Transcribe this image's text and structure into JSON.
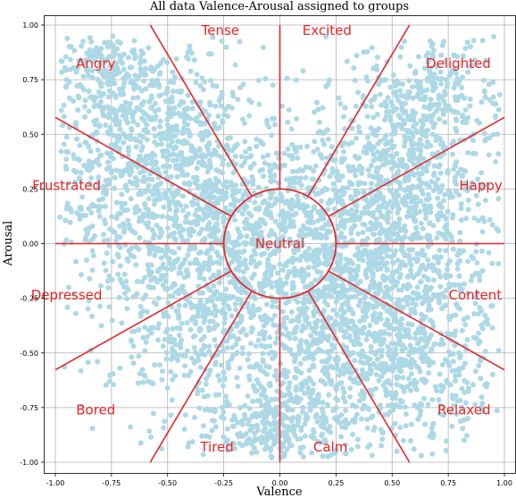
{
  "chart_data": {
    "type": "scatter",
    "title": "All data Valence-Arousal assigned to groups",
    "xlabel": "Valence",
    "ylabel": "Arousal",
    "xlim": [
      -1.0,
      1.0
    ],
    "ylim": [
      -1.0,
      1.0
    ],
    "xticks": [
      "-1.00",
      "-0.75",
      "-0.50",
      "-0.25",
      "0.00",
      "0.25",
      "0.50",
      "0.75",
      "1.00"
    ],
    "yticks": [
      "1.00",
      "0.75",
      "0.50",
      "0.25",
      "0.00",
      "-0.25",
      "-0.50",
      "-0.75",
      "-1.00"
    ],
    "xtick_values": [
      -1.0,
      -0.75,
      -0.5,
      -0.25,
      0.0,
      0.25,
      0.5,
      0.75,
      1.0
    ],
    "ytick_values": [
      1.0,
      0.75,
      0.5,
      0.25,
      0.0,
      -0.25,
      -0.5,
      -0.75,
      -1.0
    ],
    "grid": true,
    "point_color": "#add8e6",
    "line_color": "#e8262b",
    "label_color": "#ee2222",
    "neutral_radius": 0.25,
    "boundary_angles_deg": [
      0,
      30,
      60,
      90,
      120,
      150,
      180,
      210,
      240,
      270,
      300,
      330
    ],
    "regions": [
      {
        "label": "Excited",
        "x": 0.21,
        "y": 0.975
      },
      {
        "label": "Delighted",
        "x": 0.795,
        "y": 0.825
      },
      {
        "label": "Happy",
        "x": 0.895,
        "y": 0.265
      },
      {
        "label": "Content",
        "x": 0.87,
        "y": -0.235
      },
      {
        "label": "Relaxed",
        "x": 0.82,
        "y": -0.76
      },
      {
        "label": "Calm",
        "x": 0.225,
        "y": -0.93
      },
      {
        "label": "Tired",
        "x": -0.28,
        "y": -0.93
      },
      {
        "label": "Bored",
        "x": -0.82,
        "y": -0.76
      },
      {
        "label": "Depressed",
        "x": -0.95,
        "y": -0.235
      },
      {
        "label": "Frustrated",
        "x": -0.95,
        "y": 0.265
      },
      {
        "label": "Angry",
        "x": -0.82,
        "y": 0.825
      },
      {
        "label": "Tense",
        "x": -0.265,
        "y": 0.975
      },
      {
        "label": "Neutral",
        "x": 0.0,
        "y": 0.0
      }
    ]
  }
}
